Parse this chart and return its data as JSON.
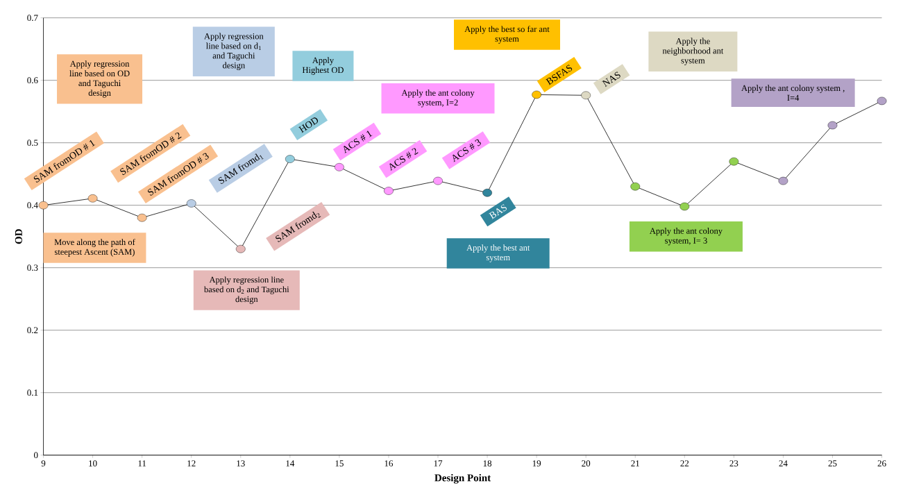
{
  "chart_data": {
    "type": "line",
    "xlabel": "Design Point",
    "ylabel": "OD",
    "x": [
      9,
      10,
      11,
      12,
      13,
      14,
      15,
      16,
      17,
      18,
      19,
      20,
      21,
      22,
      23,
      24,
      25,
      26
    ],
    "values": [
      0.4,
      0.411,
      0.38,
      0.403,
      0.33,
      0.474,
      0.461,
      0.423,
      0.439,
      0.42,
      0.577,
      0.576,
      0.43,
      0.398,
      0.47,
      0.439,
      0.528,
      0.567
    ],
    "color": "#000000",
    "colors": [
      "#f9c08f",
      "#f9c08f",
      "#f9c08f",
      "#b9cde5",
      "#e6b9b8",
      "#93cddd",
      "#ff99ff",
      "#ff99ff",
      "#ff99ff",
      "#31859c",
      "#ffc000",
      "#ddd9c3",
      "#92d050",
      "#92d050",
      "#92d050",
      "#b3a2c7",
      "#b3a2c7",
      "#b3a2c7"
    ],
    "xlim": [
      9,
      26
    ],
    "xticks": [
      9,
      10,
      11,
      12,
      13,
      14,
      15,
      16,
      17,
      18,
      19,
      20,
      21,
      22,
      23,
      24,
      25,
      26
    ],
    "ylim": [
      0,
      0.7
    ],
    "yticks": [
      0,
      0.1,
      0.2,
      0.3,
      0.4,
      0.5,
      0.6,
      0.7
    ],
    "grid": "y",
    "marker": "circle",
    "line_style": "solid",
    "annotations": [
      "Apply regression line based on OD and Taguchi design",
      "Move along the path of steepest Ascent (SAM)",
      "SAM fromOD # 1",
      "SAM fromOD # 2",
      "SAM fromOD # 3",
      "SAM fromd$_{1}$",
      "SAM fromd$_{2}$",
      "Apply regression line based on d$_{1}$ and Taguchi design",
      "Apply regression line based on d$_{2}$ and Taguchi design",
      "HOD",
      "Apply Highest OD",
      "ACS # 1",
      "ACS # 2",
      "ACS # 3",
      "Apply the ant colony system, I=2",
      "BAS",
      "Apply the best ant system",
      "BSFAS",
      "Apply the best so far ant system",
      "NAS",
      "Apply the neighborhood ant system",
      "Apply the ant colony system, I= 3",
      "Apply the ant colony system , I=4"
    ]
  }
}
